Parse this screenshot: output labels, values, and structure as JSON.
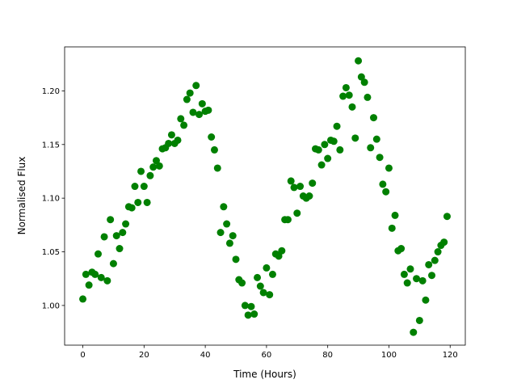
{
  "chart_data": {
    "type": "scatter",
    "x_label": "Time (Hours)",
    "y_label": "Normalised Flux",
    "color": "#008000",
    "x": [
      0,
      1,
      2,
      3,
      4,
      5,
      6,
      7,
      8,
      9,
      10,
      11,
      12,
      13,
      14,
      15,
      16,
      17,
      18,
      19,
      20,
      21,
      22,
      23,
      24,
      25,
      26,
      27,
      28,
      29,
      30,
      31,
      32,
      33,
      34,
      35,
      36,
      37,
      38,
      39,
      40,
      41,
      42,
      43,
      44,
      45,
      46,
      47,
      48,
      49,
      50,
      51,
      52,
      53,
      54,
      55,
      56,
      57,
      58,
      59,
      60,
      61,
      62,
      63,
      64,
      65,
      66,
      67,
      68,
      69,
      70,
      71,
      72,
      73,
      74,
      75,
      76,
      77,
      78,
      79,
      80,
      81,
      82,
      83,
      84,
      85,
      86,
      87,
      88,
      89,
      90,
      91,
      92,
      93,
      94,
      95,
      96,
      97,
      98,
      99,
      100,
      101,
      102,
      103,
      104,
      105,
      106,
      107,
      108,
      109,
      110,
      111,
      112,
      113,
      114,
      115,
      116,
      117,
      118,
      119
    ],
    "values": [
      1.006,
      1.029,
      1.019,
      1.031,
      1.029,
      1.048,
      1.026,
      1.064,
      1.023,
      1.08,
      1.039,
      1.065,
      1.053,
      1.068,
      1.076,
      1.092,
      1.091,
      1.111,
      1.096,
      1.125,
      1.111,
      1.096,
      1.121,
      1.129,
      1.135,
      1.13,
      1.146,
      1.147,
      1.151,
      1.159,
      1.151,
      1.154,
      1.174,
      1.168,
      1.192,
      1.198,
      1.18,
      1.205,
      1.178,
      1.188,
      1.181,
      1.182,
      1.157,
      1.145,
      1.128,
      1.068,
      1.092,
      1.076,
      1.058,
      1.065,
      1.043,
      1.024,
      1.021,
      1.0,
      0.991,
      0.999,
      0.992,
      1.026,
      1.018,
      1.012,
      1.035,
      1.01,
      1.029,
      1.048,
      1.046,
      1.051,
      1.08,
      1.08,
      1.116,
      1.11,
      1.086,
      1.111,
      1.102,
      1.1,
      1.102,
      1.114,
      1.146,
      1.145,
      1.131,
      1.15,
      1.137,
      1.154,
      1.153,
      1.167,
      1.145,
      1.195,
      1.203,
      1.196,
      1.185,
      1.156,
      1.228,
      1.213,
      1.208,
      1.194,
      1.147,
      1.175,
      1.155,
      1.138,
      1.113,
      1.106,
      1.128,
      1.072,
      1.084,
      1.051,
      1.053,
      1.029,
      1.021,
      1.034,
      0.975,
      1.025,
      0.986,
      1.023,
      1.005,
      1.038,
      1.028,
      1.042,
      1.05,
      1.056,
      1.059,
      1.083
    ],
    "xlim": [
      -5.95,
      124.95
    ],
    "ylim": [
      0.963,
      1.241
    ],
    "xticks": [
      0,
      20,
      40,
      60,
      80,
      100,
      120
    ],
    "yticks": [
      {
        "value": 1.0,
        "label": "1.00"
      },
      {
        "value": 1.05,
        "label": "1.05"
      },
      {
        "value": 1.1,
        "label": "1.10"
      },
      {
        "value": 1.15,
        "label": "1.15"
      },
      {
        "value": 1.2,
        "label": "1.20"
      }
    ]
  }
}
